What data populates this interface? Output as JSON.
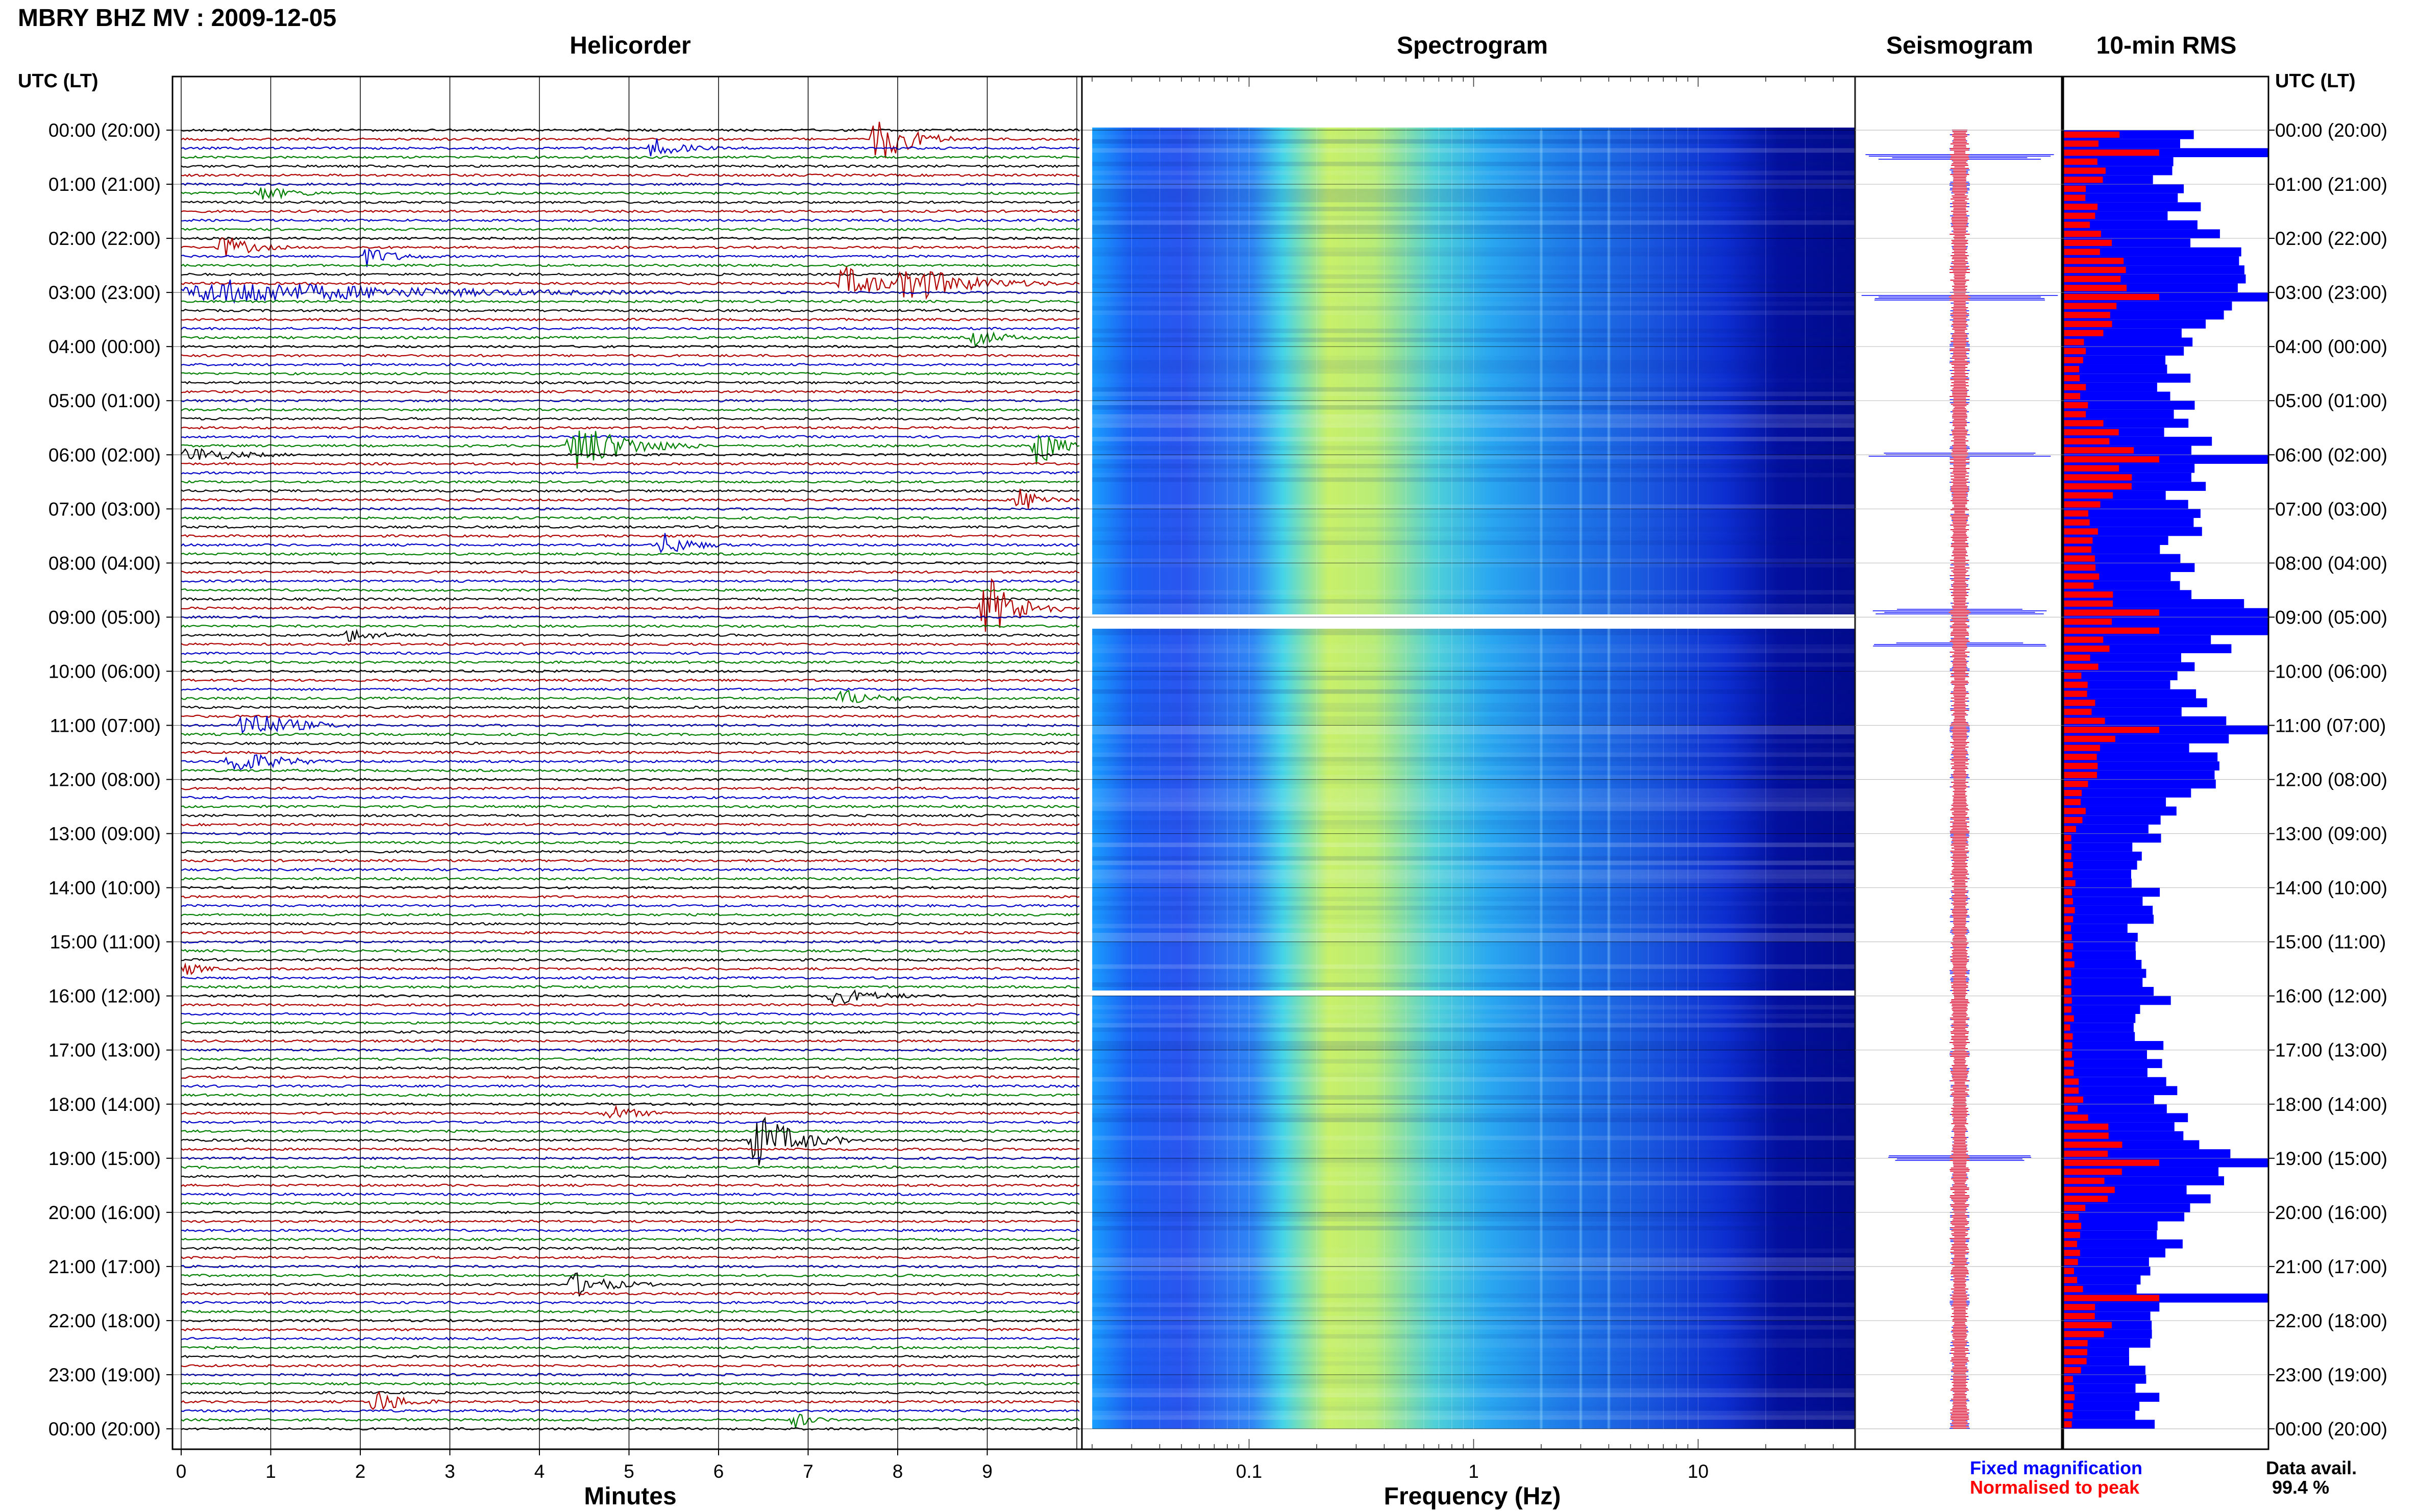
{
  "header": {
    "title": "MBRY BHZ MV : 2009-12-05"
  },
  "panels": {
    "helicorder": "Helicorder",
    "spectrogram": "Spectrogram",
    "seismogram": "Seismogram",
    "rms": "10-min RMS"
  },
  "axis": {
    "time_header": "UTC (LT)",
    "minutes_label": "Minutes",
    "frequency_label": "Frequency (Hz)"
  },
  "legend": {
    "fixed": "Fixed magnification",
    "normalised": "Normalised to peak"
  },
  "availability": {
    "label": "Data avail.",
    "value": "99.4 %"
  },
  "colors": {
    "trace_cycle": [
      "#000000",
      "#b00000",
      "#0000c8",
      "#008000"
    ],
    "spectrogram_scale": [
      "#00007f",
      "#0000ff",
      "#007fff",
      "#00ffff",
      "#7fff7f",
      "#ffff00"
    ],
    "fixed": "#0000ff",
    "normalised": "#ff0000"
  },
  "chart_data": [
    {
      "type": "line",
      "name": "helicorder",
      "title": "Helicorder",
      "xlabel": "Minutes",
      "xlim": [
        0,
        10
      ],
      "x_ticks": [
        "0",
        "1",
        "2",
        "3",
        "4",
        "5",
        "6",
        "7",
        "8",
        "9"
      ],
      "ylabel": "UTC (LT)",
      "y_ticks": [
        "00:00 (20:00)",
        "01:00 (21:00)",
        "02:00 (22:00)",
        "03:00 (23:00)",
        "04:00 (00:00)",
        "05:00 (01:00)",
        "06:00 (02:00)",
        "07:00 (03:00)",
        "08:00 (04:00)",
        "09:00 (05:00)",
        "10:00 (06:00)",
        "11:00 (07:00)",
        "12:00 (08:00)",
        "13:00 (09:00)",
        "14:00 (10:00)",
        "15:00 (11:00)",
        "16:00 (12:00)",
        "17:00 (13:00)",
        "18:00 (14:00)",
        "19:00 (15:00)",
        "20:00 (16:00)",
        "21:00 (17:00)",
        "22:00 (18:00)",
        "23:00 (19:00)",
        "00:00 (20:00)"
      ],
      "lines_per_hour": 6,
      "events": [
        {
          "hour": 0.15,
          "minute": 7.7,
          "dur": 1.0,
          "amp": 3.0
        },
        {
          "hour": 0.35,
          "minute": 5.2,
          "dur": 0.8,
          "amp": 1.2
        },
        {
          "hour": 1.2,
          "minute": 0.8,
          "dur": 1.0,
          "amp": 0.8
        },
        {
          "hour": 2.15,
          "minute": 0.4,
          "dur": 0.8,
          "amp": 1.5
        },
        {
          "hour": 2.3,
          "minute": 2.0,
          "dur": 0.8,
          "amp": 1.2
        },
        {
          "hour": 2.8,
          "minute": 7.3,
          "dur": 1.2,
          "amp": 2.0
        },
        {
          "hour": 2.85,
          "minute": 8.0,
          "dur": 1.8,
          "amp": 2.0
        },
        {
          "hour": 3.0,
          "minute": 0.0,
          "dur": 5.5,
          "amp": 1.5
        },
        {
          "hour": 3.8,
          "minute": 8.8,
          "dur": 0.8,
          "amp": 1.0
        },
        {
          "hour": 5.85,
          "minute": 4.3,
          "dur": 1.5,
          "amp": 3.0
        },
        {
          "hour": 5.85,
          "minute": 9.5,
          "dur": 0.6,
          "amp": 3.0
        },
        {
          "hour": 6.05,
          "minute": 0.0,
          "dur": 1.2,
          "amp": 1.0
        },
        {
          "hour": 6.8,
          "minute": 9.3,
          "dur": 0.7,
          "amp": 1.5
        },
        {
          "hour": 7.6,
          "minute": 5.3,
          "dur": 0.8,
          "amp": 1.5
        },
        {
          "hour": 8.85,
          "minute": 8.9,
          "dur": 1.0,
          "amp": 4.0
        },
        {
          "hour": 9.3,
          "minute": 1.8,
          "dur": 0.8,
          "amp": 0.8
        },
        {
          "hour": 10.5,
          "minute": 7.3,
          "dur": 1.0,
          "amp": 1.0
        },
        {
          "hour": 10.95,
          "minute": 0.6,
          "dur": 1.3,
          "amp": 2.0
        },
        {
          "hour": 11.6,
          "minute": 0.5,
          "dur": 1.2,
          "amp": 1.5
        },
        {
          "hour": 15.5,
          "minute": 0.0,
          "dur": 0.5,
          "amp": 0.8
        },
        {
          "hour": 16.05,
          "minute": 7.2,
          "dur": 1.2,
          "amp": 1.0
        },
        {
          "hour": 18.1,
          "minute": 4.7,
          "dur": 0.8,
          "amp": 1.0
        },
        {
          "hour": 18.7,
          "minute": 6.3,
          "dur": 1.2,
          "amp": 3.5
        },
        {
          "hour": 21.4,
          "minute": 4.3,
          "dur": 1.0,
          "amp": 1.5
        },
        {
          "hour": 23.5,
          "minute": 2.1,
          "dur": 0.8,
          "amp": 1.5
        },
        {
          "hour": 23.9,
          "minute": 6.8,
          "dur": 0.5,
          "amp": 1.0
        }
      ]
    },
    {
      "type": "heatmap",
      "name": "spectrogram",
      "title": "Spectrogram",
      "xlabel": "Frequency (Hz)",
      "x_scale": "log",
      "xlim": [
        0.02,
        50
      ],
      "x_ticks": [
        "0.1",
        "1",
        "10"
      ],
      "gaps_utc": [
        8.95,
        15.9
      ],
      "peak_band_hz": [
        0.2,
        0.5
      ],
      "resonance_hz": [
        2.0,
        3.0,
        4.0
      ]
    },
    {
      "type": "line",
      "name": "seismogram",
      "title": "Seismogram",
      "series": [
        {
          "name": "Fixed magnification"
        },
        {
          "name": "Normalised to peak"
        }
      ],
      "spike_hours": [
        0.5,
        3.1,
        6.0,
        8.9,
        9.5,
        19.0
      ]
    },
    {
      "type": "bar",
      "name": "rms",
      "title": "10-min RMS",
      "orientation": "horizontal",
      "series": [
        {
          "name": "Fixed magnification",
          "values_per_hour": [
            0.6,
            0.5,
            0.7,
            0.9,
            0.6,
            0.55,
            0.65,
            0.6,
            0.55,
            0.9,
            0.5,
            0.7,
            0.65,
            0.4,
            0.4,
            0.35,
            0.45,
            0.4,
            0.5,
            0.85,
            0.55,
            0.45,
            0.4,
            0.4,
            0.4
          ]
        },
        {
          "name": "Normalised to peak",
          "values_per_hour": [
            0.5,
            0.3,
            0.4,
            0.75,
            0.2,
            0.2,
            0.9,
            0.3,
            0.3,
            0.7,
            0.2,
            0.5,
            0.3,
            0.1,
            0.1,
            0.1,
            0.1,
            0.1,
            0.2,
            0.7,
            0.2,
            0.15,
            0.4,
            0.1,
            0.1
          ]
        }
      ],
      "peak_hours": [
        0.3,
        3.0,
        6.0,
        8.8,
        9.2,
        11.0,
        19.0,
        21.5
      ]
    }
  ]
}
